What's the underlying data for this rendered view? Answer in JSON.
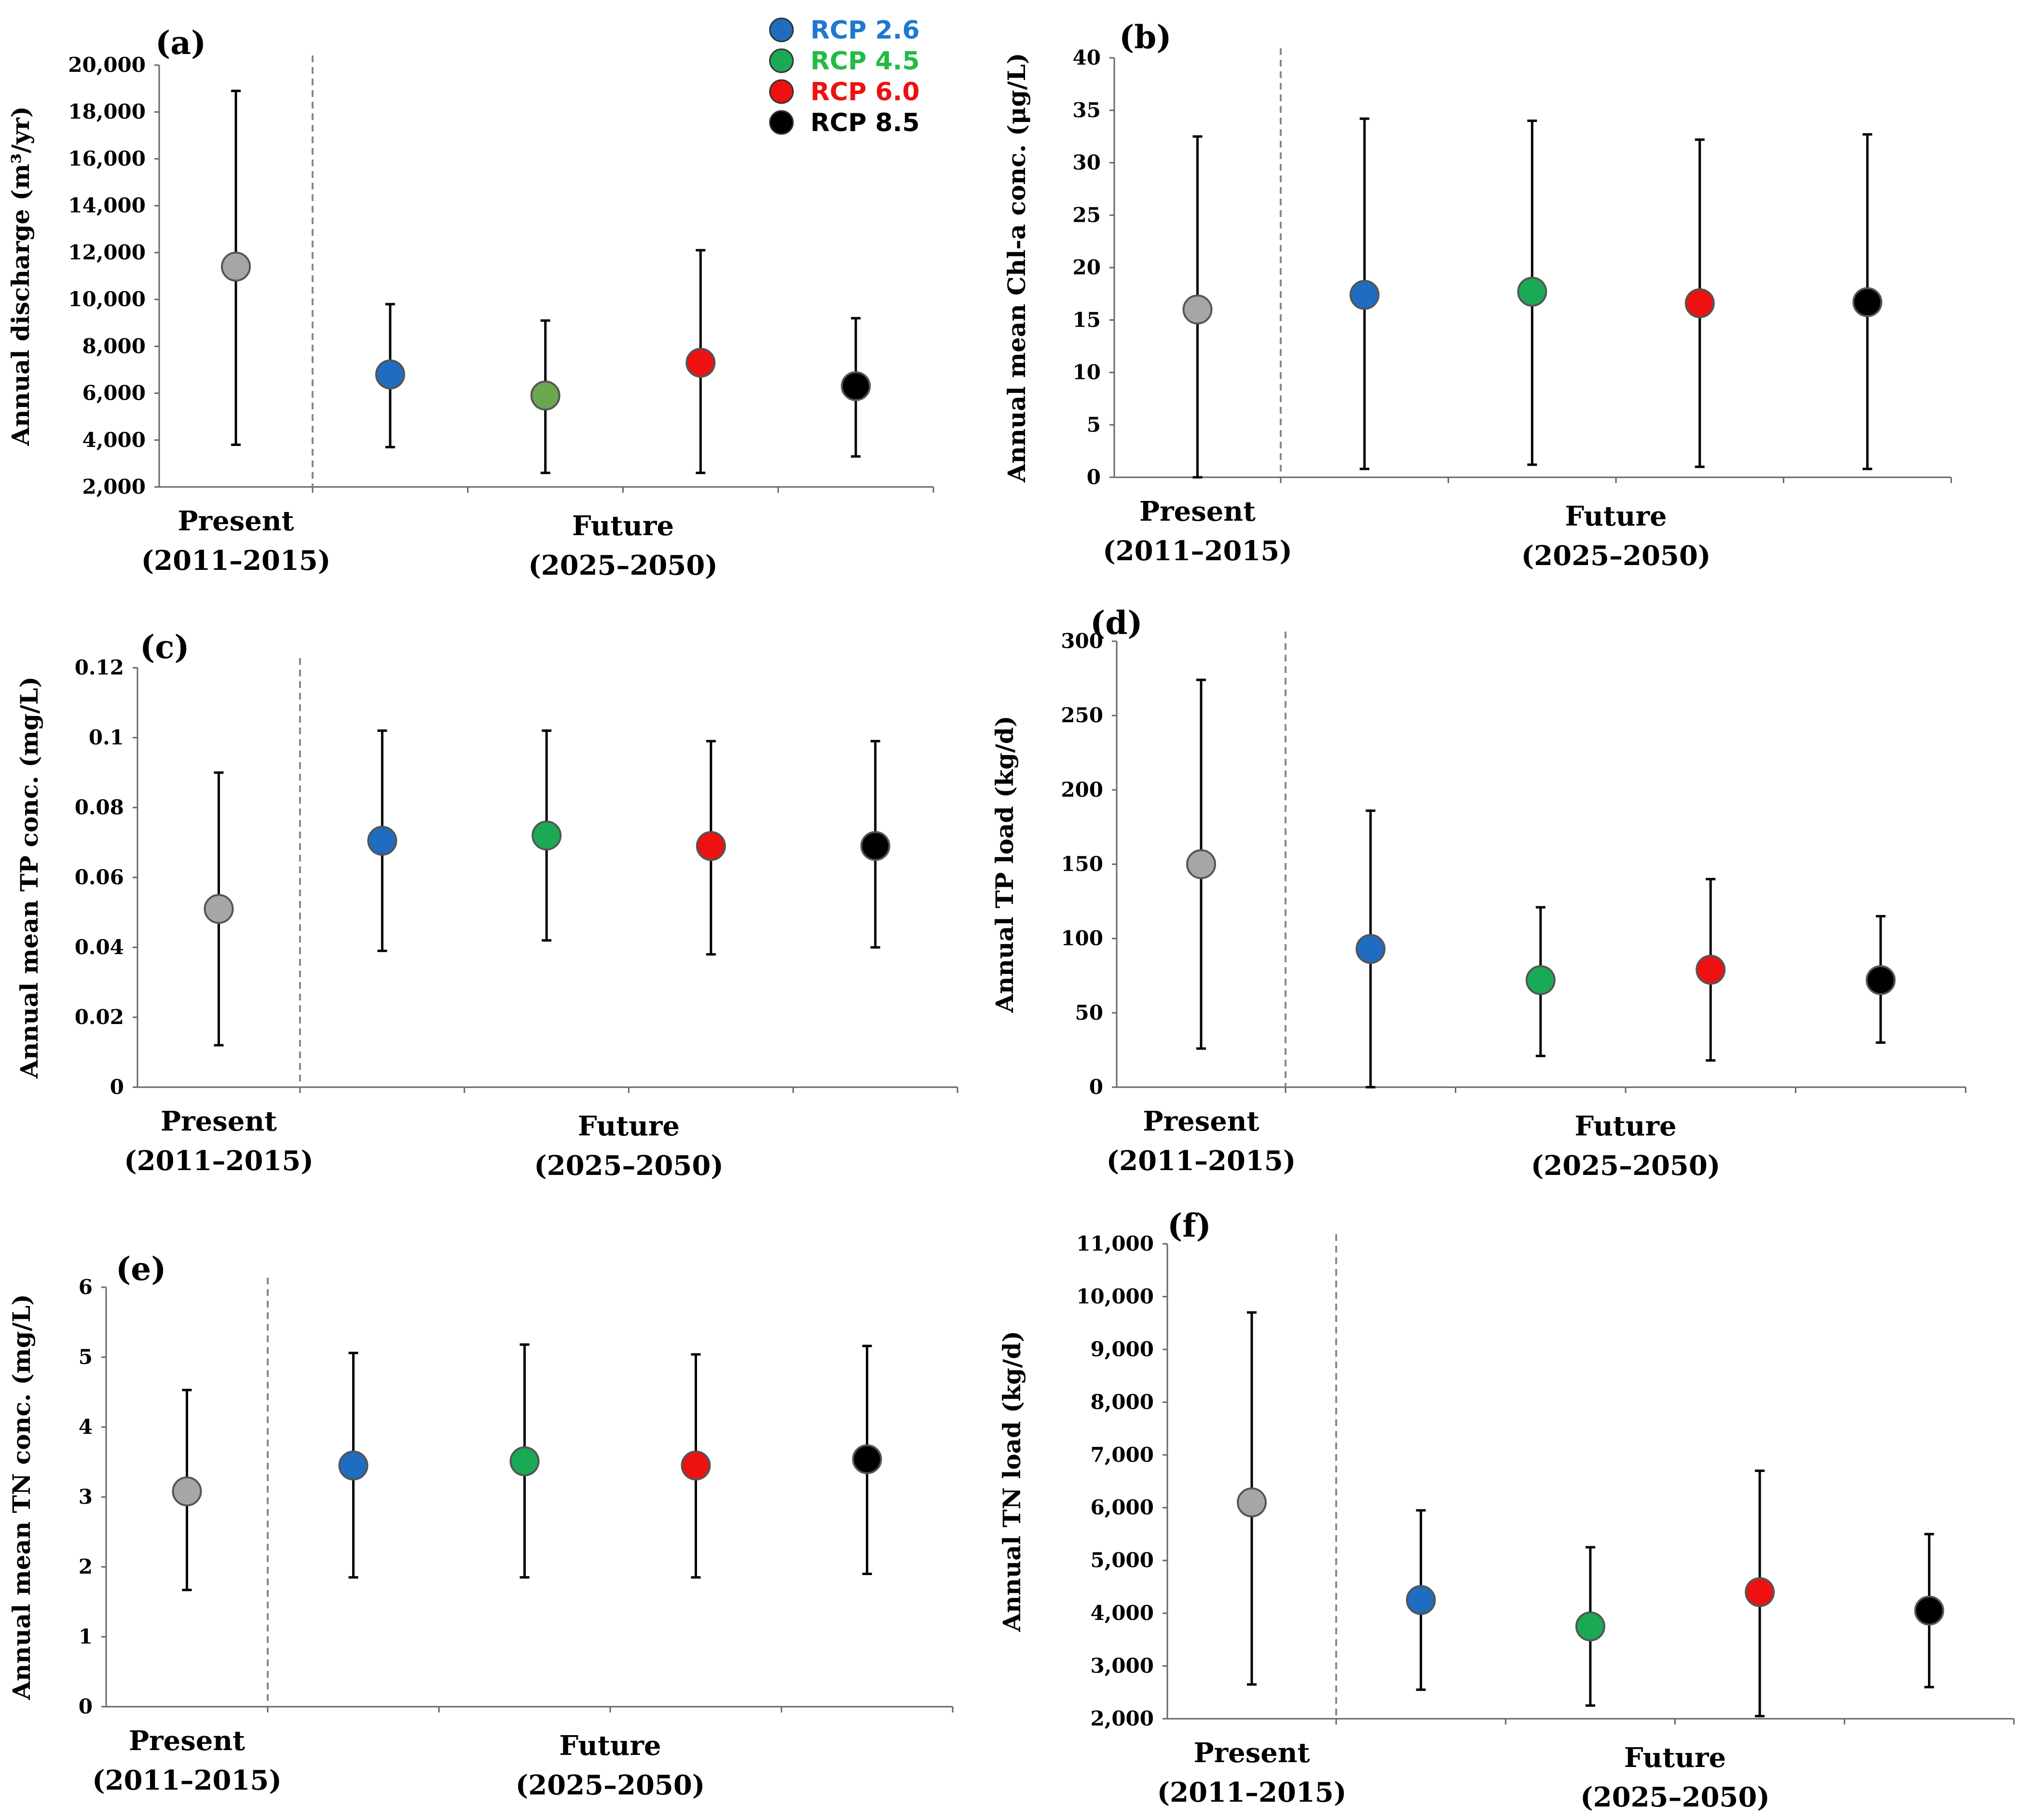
{
  "figure": {
    "background": "#ffffff",
    "legend": {
      "placement": "top-right of panel (a)",
      "items": [
        {
          "label": "RCP 2.6",
          "color": "#1f6cc0",
          "text_color": "#1f78d0"
        },
        {
          "label": "RCP 4.5",
          "color": "#1aaa55",
          "text_color": "#22bb44"
        },
        {
          "label": "RCP 6.0",
          "color": "#ee1111",
          "text_color": "#ee1111"
        },
        {
          "label": "RCP 8.5",
          "color": "#000000",
          "text_color": "#000000"
        }
      ]
    },
    "present_color": "#a6a6a6",
    "category_labels": {
      "present": [
        "Present",
        "(2011–2015)"
      ],
      "future": [
        "Future",
        "(2025–2050)"
      ]
    }
  },
  "chart_data": [
    {
      "panel": "(a)",
      "type": "scatter-errorbar",
      "ylabel": "Annual discharge (m³/yr)",
      "ylim": [
        2000,
        20000
      ],
      "yticks": [
        "2,000",
        "4,000",
        "6,000",
        "8,000",
        "10,000",
        "12,000",
        "14,000",
        "16,000",
        "18,000",
        "20,000"
      ],
      "points": [
        {
          "scenario": "Present",
          "mean": 11400,
          "low": 3800,
          "high": 18900
        },
        {
          "scenario": "RCP 2.6",
          "mean": 6800,
          "low": 3700,
          "high": 9800
        },
        {
          "scenario": "RCP 4.5",
          "mean": 5900,
          "low": 2600,
          "high": 9100,
          "color_override": "#6aa84f"
        },
        {
          "scenario": "RCP 6.0",
          "mean": 7300,
          "low": 2600,
          "high": 12100
        },
        {
          "scenario": "RCP 8.5",
          "mean": 6300,
          "low": 3300,
          "high": 9200
        }
      ]
    },
    {
      "panel": "(b)",
      "type": "scatter-errorbar",
      "ylabel": "Annual mean Chl-a conc. (μg/L)",
      "ylim": [
        0,
        40
      ],
      "yticks": [
        "0",
        "5",
        "10",
        "15",
        "20",
        "25",
        "30",
        "35",
        "40"
      ],
      "points": [
        {
          "scenario": "Present",
          "mean": 16.0,
          "low": 0,
          "high": 32.5
        },
        {
          "scenario": "RCP 2.6",
          "mean": 17.4,
          "low": 0.8,
          "high": 34.2
        },
        {
          "scenario": "RCP 4.5",
          "mean": 17.7,
          "low": 1.2,
          "high": 34.0
        },
        {
          "scenario": "RCP 6.0",
          "mean": 16.6,
          "low": 1.0,
          "high": 32.2
        },
        {
          "scenario": "RCP 8.5",
          "mean": 16.7,
          "low": 0.8,
          "high": 32.7
        }
      ]
    },
    {
      "panel": "(c)",
      "type": "scatter-errorbar",
      "ylabel": "Annual mean TP conc. (mg/L)",
      "ylim": [
        0,
        0.12
      ],
      "yticks": [
        "0",
        "0.02",
        "0.04",
        "0.06",
        "0.08",
        "0.1",
        "0.12"
      ],
      "points": [
        {
          "scenario": "Present",
          "mean": 0.051,
          "low": 0.012,
          "high": 0.09
        },
        {
          "scenario": "RCP 2.6",
          "mean": 0.0705,
          "low": 0.039,
          "high": 0.102
        },
        {
          "scenario": "RCP 4.5",
          "mean": 0.072,
          "low": 0.042,
          "high": 0.102
        },
        {
          "scenario": "RCP 6.0",
          "mean": 0.069,
          "low": 0.038,
          "high": 0.099
        },
        {
          "scenario": "RCP 8.5",
          "mean": 0.069,
          "low": 0.04,
          "high": 0.099
        }
      ]
    },
    {
      "panel": "(d)",
      "type": "scatter-errorbar",
      "ylabel": "Annual TP load (kg/d)",
      "ylim": [
        0,
        300
      ],
      "yticks": [
        "0",
        "50",
        "100",
        "150",
        "200",
        "250",
        "300"
      ],
      "points": [
        {
          "scenario": "Present",
          "mean": 150,
          "low": 26,
          "high": 274
        },
        {
          "scenario": "RCP 2.6",
          "mean": 93,
          "low": 0,
          "high": 186
        },
        {
          "scenario": "RCP 4.5",
          "mean": 72,
          "low": 21,
          "high": 121
        },
        {
          "scenario": "RCP 6.0",
          "mean": 79,
          "low": 18,
          "high": 140
        },
        {
          "scenario": "RCP 8.5",
          "mean": 72,
          "low": 30,
          "high": 115
        }
      ]
    },
    {
      "panel": "(e)",
      "type": "scatter-errorbar",
      "ylabel": "Annual mean TN conc. (mg/L)",
      "ylim": [
        0,
        6
      ],
      "yticks": [
        "0",
        "1",
        "2",
        "3",
        "4",
        "5",
        "6"
      ],
      "points": [
        {
          "scenario": "Present",
          "mean": 3.08,
          "low": 1.67,
          "high": 4.53
        },
        {
          "scenario": "RCP 2.6",
          "mean": 3.45,
          "low": 1.85,
          "high": 5.06
        },
        {
          "scenario": "RCP 4.5",
          "mean": 3.51,
          "low": 1.85,
          "high": 5.18
        },
        {
          "scenario": "RCP 6.0",
          "mean": 3.45,
          "low": 1.85,
          "high": 5.04
        },
        {
          "scenario": "RCP 8.5",
          "mean": 3.54,
          "low": 1.9,
          "high": 5.16
        }
      ]
    },
    {
      "panel": "(f)",
      "type": "scatter-errorbar",
      "ylabel": "Annual TN load (kg/d)",
      "ylim": [
        2000,
        11000
      ],
      "yticks": [
        "2,000",
        "3,000",
        "4,000",
        "5,000",
        "6,000",
        "7,000",
        "8,000",
        "9,000",
        "10,000",
        "11,000"
      ],
      "points": [
        {
          "scenario": "Present",
          "mean": 6100,
          "low": 2650,
          "high": 9700
        },
        {
          "scenario": "RCP 2.6",
          "mean": 4250,
          "low": 2550,
          "high": 5950
        },
        {
          "scenario": "RCP 4.5",
          "mean": 3750,
          "low": 2250,
          "high": 5250
        },
        {
          "scenario": "RCP 6.0",
          "mean": 4400,
          "low": 2050,
          "high": 6700
        },
        {
          "scenario": "RCP 8.5",
          "mean": 4050,
          "low": 2600,
          "high": 5500
        }
      ]
    }
  ]
}
